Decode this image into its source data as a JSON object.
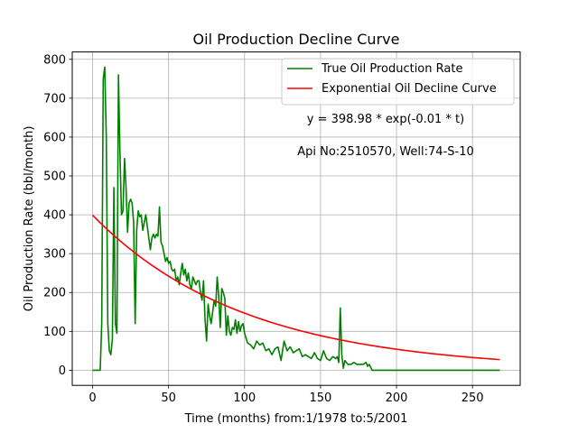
{
  "chart_data": {
    "type": "line",
    "title": "Oil Production Decline Curve",
    "xlabel": "Time (months) from:1/1978 to:5/2001",
    "ylabel": "Oil Production Rate (bbl/month)",
    "xlim": [
      -13.4,
      281.4
    ],
    "ylim": [
      -39,
      819
    ],
    "xticks": [
      0,
      50,
      100,
      150,
      200,
      250
    ],
    "yticks": [
      0,
      100,
      200,
      300,
      400,
      500,
      600,
      700,
      800
    ],
    "grid": true,
    "legend_position": "upper-right",
    "annotations": [
      "y = 398.98 * exp(-0.01 * t)",
      "Api No:2510570, Well:74-S-10"
    ],
    "series": [
      {
        "name": "True Oil Production Rate",
        "color": "#008000",
        "x": [
          0,
          1,
          2,
          3,
          4,
          5,
          6,
          7,
          8,
          9,
          10,
          11,
          12,
          13,
          14,
          15,
          16,
          17,
          18,
          19,
          20,
          21,
          22,
          23,
          24,
          25,
          26,
          27,
          28,
          29,
          30,
          31,
          32,
          33,
          34,
          35,
          36,
          37,
          38,
          39,
          40,
          41,
          42,
          43,
          44,
          45,
          46,
          47,
          48,
          49,
          50,
          51,
          52,
          53,
          54,
          55,
          56,
          57,
          58,
          59,
          60,
          61,
          62,
          63,
          64,
          65,
          66,
          67,
          68,
          69,
          70,
          71,
          72,
          73,
          74,
          75,
          76,
          77,
          78,
          79,
          80,
          81,
          82,
          83,
          84,
          85,
          86,
          87,
          88,
          89,
          90,
          91,
          92,
          93,
          94,
          95,
          96,
          97,
          98,
          99,
          100,
          102,
          104,
          106,
          108,
          110,
          112,
          114,
          116,
          118,
          120,
          122,
          124,
          126,
          128,
          130,
          132,
          134,
          136,
          138,
          140,
          142,
          144,
          146,
          148,
          150,
          152,
          154,
          156,
          158,
          160,
          161,
          162,
          163,
          164,
          165,
          166,
          168,
          170,
          172,
          174,
          176,
          178,
          180,
          181,
          182,
          184,
          190,
          200,
          220,
          240,
          260,
          268
        ],
        "y": [
          0,
          0,
          0,
          0,
          0,
          0,
          120,
          750,
          780,
          600,
          120,
          50,
          40,
          80,
          470,
          120,
          95,
          760,
          560,
          400,
          410,
          545,
          470,
          355,
          430,
          440,
          430,
          380,
          120,
          360,
          410,
          395,
          400,
          360,
          380,
          400,
          370,
          340,
          310,
          340,
          350,
          340,
          350,
          345,
          420,
          330,
          320,
          300,
          280,
          290,
          275,
          280,
          260,
          255,
          260,
          230,
          240,
          220,
          250,
          275,
          245,
          260,
          230,
          250,
          220,
          210,
          240,
          230,
          220,
          230,
          230,
          200,
          180,
          230,
          130,
          75,
          170,
          140,
          120,
          150,
          180,
          165,
          240,
          190,
          110,
          210,
          200,
          185,
          90,
          140,
          100,
          90,
          110,
          105,
          130,
          95,
          125,
          100,
          115,
          120,
          95,
          70,
          65,
          55,
          75,
          65,
          70,
          50,
          55,
          40,
          55,
          60,
          25,
          75,
          50,
          60,
          45,
          50,
          55,
          35,
          40,
          35,
          30,
          45,
          30,
          25,
          50,
          30,
          25,
          35,
          30,
          35,
          20,
          160,
          40,
          5,
          25,
          15,
          15,
          20,
          15,
          15,
          15,
          20,
          10,
          15,
          0,
          0,
          0,
          0,
          0,
          0,
          0
        ]
      },
      {
        "name": "Exponential Oil Decline Curve",
        "color": "#ff0000",
        "equation": {
          "a": 398.98,
          "b": -0.01
        },
        "x_range": [
          0,
          268
        ]
      }
    ]
  }
}
